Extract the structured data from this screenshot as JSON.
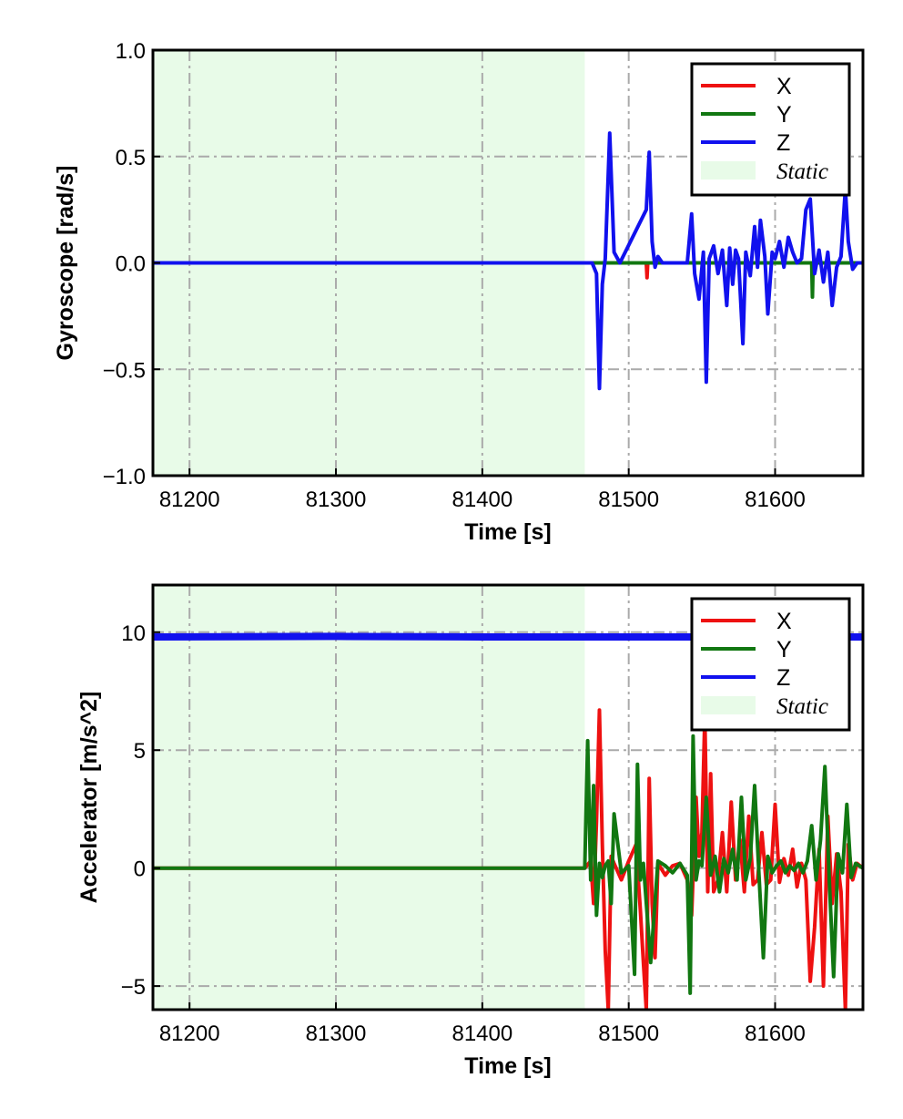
{
  "chart_data": [
    {
      "type": "line",
      "xlabel": "Time [s]",
      "ylabel": "Gyroscope [rad/s]",
      "xlim": [
        81175,
        81660
      ],
      "ylim": [
        -1.0,
        1.0
      ],
      "xticks": [
        81200,
        81300,
        81400,
        81500,
        81600
      ],
      "xtick_labels": [
        "81200",
        "81300",
        "81400",
        "81500",
        "81600"
      ],
      "yticks": [
        -1.0,
        -0.5,
        0.0,
        0.5,
        1.0
      ],
      "ytick_labels": [
        "−1.0",
        "−0.5",
        "0.0",
        "0.5",
        "1.0"
      ],
      "grid": true,
      "legend_position": "top-right",
      "shaded_region": {
        "label": "Static",
        "x_start": 81175,
        "x_end": 81470,
        "color": "#e8fbe8"
      },
      "series": [
        {
          "name": "X",
          "color": "#ee1111",
          "x": [
            81175,
            81470,
            81512,
            81512.5,
            81513,
            81560,
            81600,
            81660
          ],
          "y": [
            0,
            0,
            0,
            -0.07,
            0,
            0,
            0,
            0
          ]
        },
        {
          "name": "Y",
          "color": "#117711",
          "x": [
            81175,
            81470,
            81620,
            81625,
            81625.5,
            81626,
            81660
          ],
          "y": [
            0,
            0,
            0,
            0,
            -0.16,
            0,
            0
          ]
        },
        {
          "name": "Z",
          "color": "#1111ee",
          "x": [
            81175,
            81470,
            81475,
            81478,
            81480,
            81482,
            81484,
            81487,
            81490,
            81494,
            81512,
            81514,
            81516,
            81518,
            81520,
            81523,
            81530,
            81540,
            81543,
            81545,
            81548,
            81551,
            81553,
            81555,
            81558,
            81561,
            81564,
            81567,
            81569,
            81571,
            81573,
            81575,
            81578,
            81580,
            81583,
            81586,
            81588,
            81590,
            81593,
            81595,
            81598,
            81600,
            81603,
            81606,
            81609,
            81612,
            81615,
            81618,
            81621,
            81624,
            81627,
            81630,
            81633,
            81636,
            81639,
            81642,
            81645,
            81648,
            81650,
            81653,
            81656,
            81660
          ],
          "y": [
            0,
            0,
            0,
            -0.05,
            -0.59,
            -0.1,
            0.02,
            0.61,
            0.05,
            0,
            0.25,
            0.52,
            0.1,
            -0.02,
            0.03,
            0,
            0,
            0,
            0.23,
            -0.05,
            -0.17,
            0.05,
            -0.56,
            0.02,
            0.08,
            -0.05,
            0.06,
            -0.2,
            0.07,
            -0.1,
            0.06,
            0.02,
            -0.38,
            0.05,
            -0.06,
            0.17,
            -0.02,
            0.2,
            0.03,
            -0.24,
            0.05,
            0.02,
            0.1,
            -0.02,
            0.12,
            0.05,
            0,
            0.02,
            0.25,
            0.3,
            -0.05,
            0.06,
            -0.09,
            0.05,
            -0.2,
            -0.02,
            0.03,
            0.35,
            0.1,
            -0.03,
            0,
            0
          ]
        }
      ],
      "legend": [
        {
          "label": "X",
          "color": "#ee1111",
          "kind": "line"
        },
        {
          "label": "Y",
          "color": "#117711",
          "kind": "line"
        },
        {
          "label": "Z",
          "color": "#1111ee",
          "kind": "line"
        },
        {
          "label": "Static",
          "color": "#e8fbe8",
          "kind": "patch"
        }
      ]
    },
    {
      "type": "line",
      "xlabel": "Time [s]",
      "ylabel": "Accelerator [m/s^2]",
      "xlim": [
        81175,
        81660
      ],
      "ylim": [
        -6.0,
        12.0
      ],
      "xticks": [
        81200,
        81300,
        81400,
        81500,
        81600
      ],
      "xtick_labels": [
        "81200",
        "81300",
        "81400",
        "81500",
        "81600"
      ],
      "yticks": [
        -5,
        0,
        5,
        10
      ],
      "ytick_labels": [
        "−5",
        "0",
        "5",
        "10"
      ],
      "grid": true,
      "legend_position": "top-right",
      "shaded_region": {
        "label": "Static",
        "x_start": 81175,
        "x_end": 81470,
        "color": "#e8fbe8"
      },
      "series": [
        {
          "name": "X",
          "color": "#ee1111",
          "x": [
            81175,
            81470,
            81474,
            81476,
            81478,
            81480,
            81482,
            81484,
            81486,
            81488,
            81490,
            81495,
            81500,
            81505,
            81508,
            81510,
            81512,
            81514,
            81516,
            81518,
            81520,
            81525,
            81530,
            81535,
            81540,
            81543,
            81546,
            81548,
            81550,
            81552,
            81554,
            81556,
            81558,
            81561,
            81564,
            81567,
            81570,
            81573,
            81576,
            81579,
            81582,
            81585,
            81588,
            81591,
            81594,
            81597,
            81600,
            81603,
            81606,
            81609,
            81612,
            81615,
            81618,
            81621,
            81624,
            81627,
            81630,
            81633,
            81636,
            81639,
            81642,
            81645,
            81648,
            81650,
            81653,
            81656,
            81660
          ],
          "y": [
            0,
            0,
            0.3,
            -1.5,
            2.0,
            6.7,
            1.0,
            -3.5,
            -6.0,
            0.5,
            0.2,
            -0.5,
            0.3,
            1.0,
            -1.8,
            -4.0,
            -6.0,
            3.8,
            -1.5,
            -3.8,
            0.2,
            -0.3,
            0.1,
            0.2,
            -0.5,
            -2.0,
            3.0,
            0.5,
            1.5,
            6.5,
            -1.0,
            4.0,
            -1.0,
            -0.5,
            1.5,
            -1.0,
            2.8,
            -0.5,
            1.2,
            -1.0,
            2.2,
            -0.7,
            -0.5,
            1.5,
            -0.7,
            -0.5,
            2.7,
            -0.6,
            0.4,
            -0.3,
            0.8,
            -0.8,
            0.2,
            -0.5,
            -4.8,
            -2.5,
            0.8,
            -5.0,
            2.2,
            -1.5,
            0.6,
            -1.0,
            -6.0,
            1.0,
            -0.5,
            0.2,
            0.0
          ]
        },
        {
          "name": "Y",
          "color": "#117711",
          "x": [
            81175,
            81470,
            81472,
            81474,
            81476,
            81478,
            81480,
            81482,
            81484,
            81486,
            81488,
            81490,
            81495,
            81500,
            81504,
            81506,
            81508,
            81510,
            81515,
            81520,
            81525,
            81530,
            81535,
            81540,
            81542,
            81544,
            81546,
            81548,
            81550,
            81553,
            81556,
            81559,
            81562,
            81565,
            81568,
            81571,
            81574,
            81577,
            81580,
            81583,
            81586,
            81589,
            81592,
            81595,
            81598,
            81601,
            81604,
            81607,
            81610,
            81613,
            81616,
            81619,
            81622,
            81625,
            81628,
            81631,
            81634,
            81637,
            81640,
            81643,
            81646,
            81649,
            81652,
            81655,
            81660
          ],
          "y": [
            0,
            0,
            5.4,
            -0.5,
            3.5,
            -2.0,
            0.2,
            -0.4,
            0.1,
            0.3,
            -1.5,
            2.3,
            -0.2,
            0.1,
            -4.5,
            4.4,
            -0.5,
            0.2,
            -4.0,
            0.3,
            0.1,
            -0.2,
            0.2,
            -0.3,
            -5.3,
            5.6,
            -0.5,
            0.3,
            0.1,
            3.0,
            -0.3,
            0.5,
            -1.0,
            0.4,
            -0.2,
            0.8,
            -0.5,
            3.0,
            -0.5,
            0.4,
            3.5,
            -0.3,
            -3.8,
            0.5,
            -0.2,
            0.1,
            0.3,
            -0.2,
            0.1,
            -0.1,
            0.2,
            -0.2,
            0.3,
            1.8,
            -0.5,
            1.2,
            4.3,
            -0.5,
            -4.6,
            0.6,
            -0.2,
            2.7,
            -0.4,
            0.2,
            0.0
          ]
        },
        {
          "name": "Z",
          "color": "#1111ee",
          "x": [
            81175,
            81300,
            81400,
            81470,
            81500,
            81550,
            81600,
            81660
          ],
          "y": [
            9.8,
            9.82,
            9.8,
            9.8,
            9.8,
            9.8,
            9.8,
            9.8
          ]
        }
      ],
      "legend": [
        {
          "label": "X",
          "color": "#ee1111",
          "kind": "line"
        },
        {
          "label": "Y",
          "color": "#117711",
          "kind": "line"
        },
        {
          "label": "Z",
          "color": "#1111ee",
          "kind": "line"
        },
        {
          "label": "Static",
          "color": "#e8fbe8",
          "kind": "patch"
        }
      ]
    }
  ]
}
